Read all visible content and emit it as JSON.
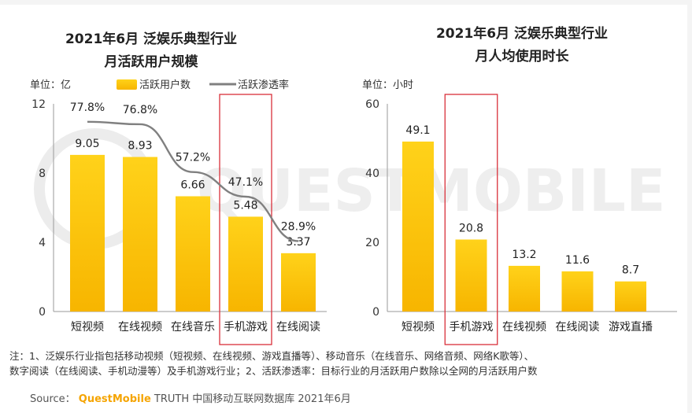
{
  "watermark": "QUESTMOBILE",
  "chart_data": [
    {
      "type": "bar",
      "title": "2021年6月 泛娱乐典型行业",
      "subtitle": "月活跃用户规模",
      "unit_label": "单位：亿",
      "legend": [
        "活跃用户数",
        "活跃渗透率"
      ],
      "categories": [
        "短视频",
        "在线视频",
        "在线音乐",
        "手机游戏",
        "在线阅读"
      ],
      "series": [
        {
          "name": "活跃用户数",
          "type": "bar",
          "values": [
            9.05,
            8.93,
            6.66,
            5.48,
            3.37
          ],
          "labels": [
            "9.05",
            "8.93",
            "6.66",
            "5.48",
            "3.37"
          ]
        },
        {
          "name": "活跃渗透率",
          "type": "line",
          "values": [
            77.8,
            76.8,
            57.2,
            47.1,
            28.9
          ],
          "labels": [
            "77.8%",
            "76.8%",
            "57.2%",
            "47.1%",
            "28.9%"
          ]
        }
      ],
      "y_ticks": [
        "0",
        "4",
        "8",
        "12"
      ],
      "ylim": [
        0,
        12
      ],
      "highlight_category": "手机游戏"
    },
    {
      "type": "bar",
      "title": "2021年6月 泛娱乐典型行业",
      "subtitle": "月人均使用时长",
      "unit_label": "单位：小时",
      "categories": [
        "短视频",
        "手机游戏",
        "在线视频",
        "在线阅读",
        "游戏直播"
      ],
      "series": [
        {
          "name": "",
          "type": "bar",
          "values": [
            49.1,
            20.8,
            13.2,
            11.6,
            8.7
          ],
          "labels": [
            "49.1",
            "20.8",
            "13.2",
            "11.6",
            "8.7"
          ]
        }
      ],
      "y_ticks": [
        "0",
        "20",
        "40",
        "60"
      ],
      "ylim": [
        0,
        60
      ],
      "highlight_category": "手机游戏"
    }
  ],
  "footer": {
    "note_line1": "注：1、泛娱乐行业指包括移动视频（短视频、在线视频、游戏直播等）、移动音乐（在线音乐、网络音频、网络K歌等）、",
    "note_line2": "数字阅读（在线阅读、手机动漫等）及手机游戏行业；2、活跃渗透率：目标行业的月活跃用户数除以全网的月活跃用户数",
    "source_prefix": "Source：",
    "source_brand": "QuestMobile",
    "source_rest": " TRUTH 中国移动互联网数据库 2021年6月"
  },
  "colors": {
    "bar_top": "#ffd21a",
    "bar_bottom": "#f7b500",
    "line": "#808080",
    "highlight": "#d9303a",
    "axis": "#9a9a9a",
    "text": "#333333"
  }
}
